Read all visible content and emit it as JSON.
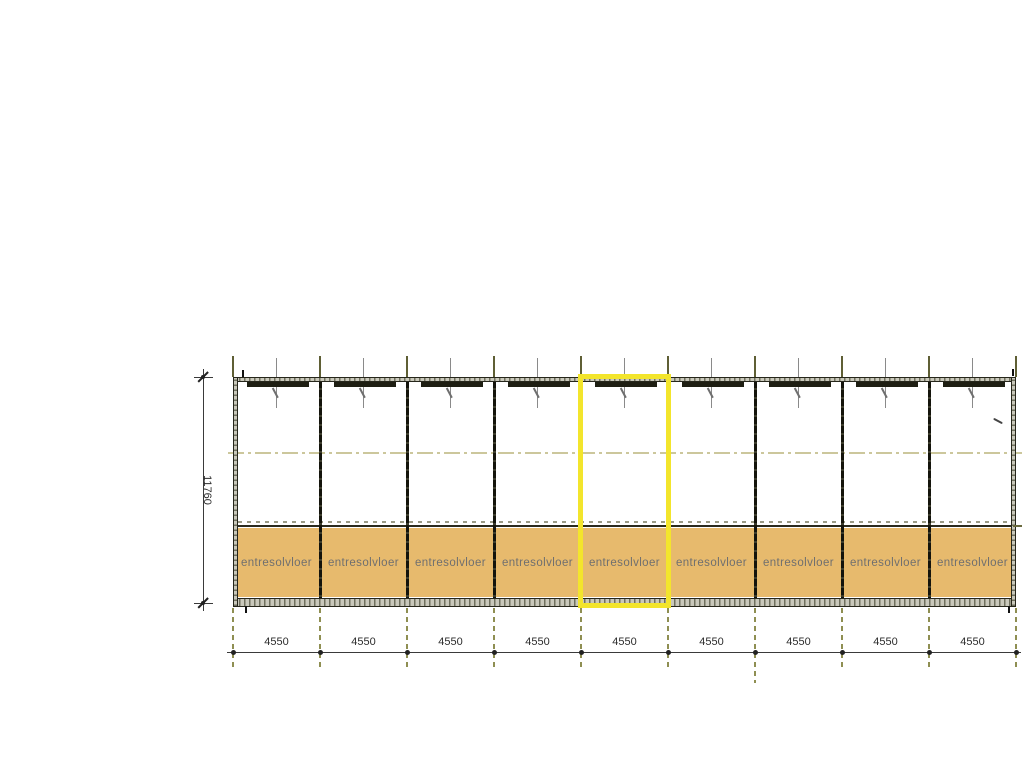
{
  "drawing": {
    "height_dim_label": "11760",
    "bay_count": 9,
    "highlighted_bay_index": 4,
    "bays": [
      {
        "floor_label": "entresolvloer",
        "width_label": "4550"
      },
      {
        "floor_label": "entresolvloer",
        "width_label": "4550"
      },
      {
        "floor_label": "entresolvloer",
        "width_label": "4550"
      },
      {
        "floor_label": "entresolvloer",
        "width_label": "4550"
      },
      {
        "floor_label": "entresolvloer",
        "width_label": "4550"
      },
      {
        "floor_label": "entresolvloer",
        "width_label": "4550"
      },
      {
        "floor_label": "entresolvloer",
        "width_label": "4550"
      },
      {
        "floor_label": "entresolvloer",
        "width_label": "4550"
      },
      {
        "floor_label": "entresolvloer",
        "width_label": "4550"
      }
    ],
    "colors": {
      "entresol_fill": "#e7ba6d",
      "highlight": "#f3e52c",
      "wall": "#26261b",
      "grid": "#8f8f52",
      "centerline": "#ccc79c",
      "floor_text": "#6f6f6f",
      "dim_text": "#2c2c2c"
    }
  }
}
